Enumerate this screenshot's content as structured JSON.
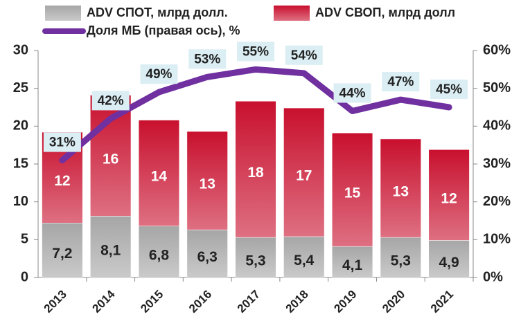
{
  "chart_data": {
    "type": "bar",
    "categories": [
      "2013",
      "2014",
      "2015",
      "2016",
      "2017",
      "2018",
      "2019",
      "2020",
      "2021"
    ],
    "series": [
      {
        "name": "ADV СПОТ,  млрд долл.",
        "color": "#a6a6a6",
        "values": [
          7.2,
          8.1,
          6.8,
          6.3,
          5.3,
          5.4,
          4.1,
          5.3,
          4.9
        ],
        "value_labels": [
          "7,2",
          "8,1",
          "6,8",
          "6,3",
          "5,3",
          "5,4",
          "4,1",
          "5,3",
          "4,9"
        ]
      },
      {
        "name": "ADV СВОП, млрд долл",
        "color": "#c8102e",
        "values": [
          12,
          16,
          14,
          13,
          18,
          17,
          15,
          13,
          12
        ]
      },
      {
        "name": "Доля МБ (правая ось), %",
        "color": "#7030a0",
        "type": "line",
        "axis": "y2",
        "values": [
          31,
          42,
          49,
          53,
          55,
          54,
          44,
          47,
          45
        ],
        "value_labels": [
          "31%",
          "42%",
          "49%",
          "53%",
          "55%",
          "54%",
          "44%",
          "47%",
          "45%"
        ]
      }
    ],
    "ylim": [
      0,
      30
    ],
    "yticks": [
      0,
      5,
      10,
      15,
      20,
      25,
      30
    ],
    "y2lim": [
      0,
      60
    ],
    "y2ticks": [
      {
        "value": 0,
        "label": "0%"
      },
      {
        "value": 10,
        "label": "10%"
      },
      {
        "value": 20,
        "label": "20%"
      },
      {
        "value": 30,
        "label": "30%"
      },
      {
        "value": 40,
        "label": "40%"
      },
      {
        "value": 50,
        "label": "50%"
      },
      {
        "value": 60,
        "label": "60%"
      }
    ]
  }
}
